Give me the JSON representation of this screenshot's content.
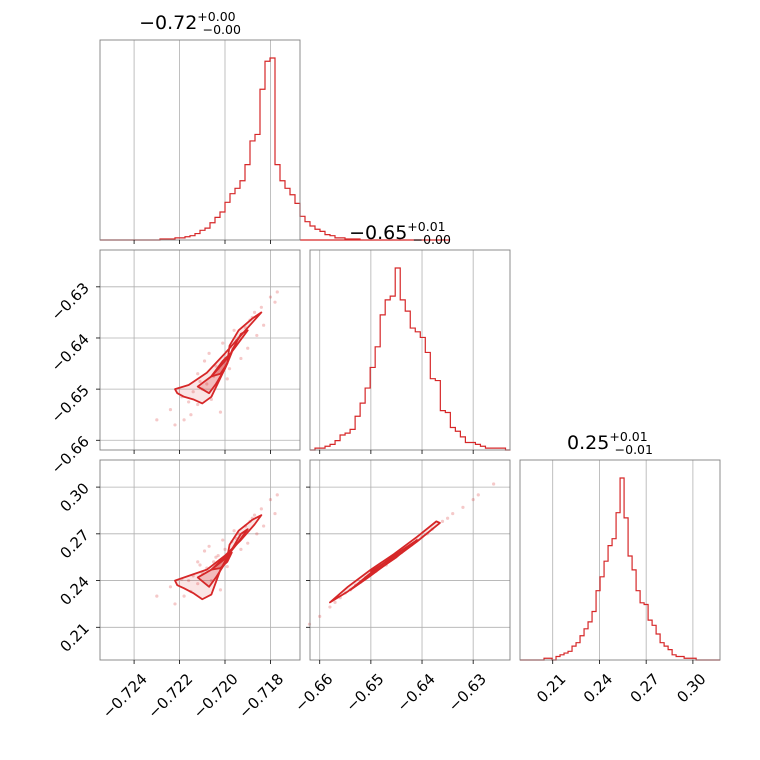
{
  "style": {
    "color": "#d62728",
    "grid": true
  },
  "chart_data": {
    "type": "corner",
    "parameters": [
      {
        "title": {
          "value": "−0.72",
          "plus": "+0.00",
          "minus": "−0.00"
        },
        "range": [
          -0.7255,
          -0.7167
        ],
        "ticks": [
          -0.724,
          -0.722,
          -0.72,
          -0.718
        ],
        "tick_labels": [
          "−0.724",
          "−0.722",
          "−0.720",
          "−0.718"
        ],
        "histogram": {
          "bin_start": -0.7255,
          "bin_width": 0.00022,
          "counts": [
            0,
            0,
            0,
            0,
            0,
            0,
            0,
            0,
            0,
            0,
            0,
            0,
            1,
            1,
            1,
            2,
            2,
            3,
            4,
            6,
            9,
            11,
            16,
            21,
            26,
            35,
            43,
            48,
            55,
            70,
            92,
            98,
            140,
            166,
            169,
            70,
            55,
            48,
            42,
            34,
            22,
            17,
            13,
            10,
            8,
            5,
            4,
            2,
            2,
            1,
            1,
            1,
            0,
            0,
            0,
            0,
            0,
            0,
            0,
            0,
            0,
            0,
            0,
            0,
            0,
            0,
            0,
            0,
            0,
            0
          ]
        }
      },
      {
        "title": {
          "value": "−0.65",
          "plus": "+0.01",
          "minus": "−0.00"
        },
        "range": [
          -0.6619,
          -0.6228
        ],
        "ticks": [
          -0.66,
          -0.65,
          -0.64,
          -0.63
        ],
        "tick_labels": [
          "−0.66",
          "−0.65",
          "−0.64",
          "−0.63"
        ],
        "histogram": {
          "bin_start": -0.6619,
          "bin_width": 0.00098,
          "counts": [
            0,
            1,
            1,
            2,
            3,
            5,
            8,
            9,
            11,
            18,
            25,
            33,
            44,
            55,
            72,
            80,
            82,
            97,
            80,
            74,
            65,
            63,
            60,
            52,
            38,
            37,
            21,
            20,
            12,
            10,
            7,
            4,
            4,
            3,
            2,
            1,
            1,
            1,
            1,
            0
          ]
        }
      },
      {
        "title": {
          "value": "0.25",
          "plus": "+0.01",
          "minus": "−0.01"
        },
        "range": [
          0.189,
          0.3174
        ],
        "ticks": [
          0.21,
          0.24,
          0.27,
          0.3
        ],
        "tick_labels": [
          "0.21",
          "0.24",
          "0.27",
          "0.30"
        ],
        "histogram": {
          "bin_start": 0.189,
          "bin_width": 0.00257,
          "counts": [
            0,
            0,
            0,
            0,
            0,
            0,
            1,
            1,
            0,
            2,
            3,
            4,
            5,
            8,
            10,
            14,
            18,
            22,
            28,
            40,
            48,
            57,
            66,
            70,
            85,
            105,
            82,
            60,
            52,
            40,
            33,
            32,
            23,
            20,
            15,
            10,
            8,
            6,
            3,
            2,
            2,
            1,
            1,
            1,
            0,
            0,
            0,
            0,
            0,
            0
          ]
        }
      }
    ],
    "scatter_2d": [
      {
        "x_param": 0,
        "y_param": 1,
        "points": [
          [
            -0.721,
            -0.65
          ],
          [
            -0.7208,
            -0.649
          ],
          [
            -0.7205,
            -0.6475
          ],
          [
            -0.7203,
            -0.646
          ],
          [
            -0.72,
            -0.644
          ],
          [
            -0.7197,
            -0.642
          ],
          [
            -0.7194,
            -0.64
          ],
          [
            -0.7191,
            -0.638
          ],
          [
            -0.7188,
            -0.636
          ],
          [
            -0.7184,
            -0.634
          ],
          [
            -0.718,
            -0.632
          ],
          [
            -0.7177,
            -0.631
          ],
          [
            -0.7212,
            -0.653
          ],
          [
            -0.7215,
            -0.655
          ],
          [
            -0.7218,
            -0.656
          ],
          [
            -0.7222,
            -0.657
          ],
          [
            -0.7212,
            -0.647
          ],
          [
            -0.7206,
            -0.652
          ],
          [
            -0.7198,
            -0.646
          ],
          [
            -0.7201,
            -0.641
          ],
          [
            -0.719,
            -0.642
          ],
          [
            -0.7209,
            -0.6445
          ],
          [
            -0.7196,
            -0.6385
          ],
          [
            -0.7186,
            -0.6395
          ],
          [
            -0.7214,
            -0.6505
          ],
          [
            -0.7219,
            -0.6515
          ],
          [
            -0.7202,
            -0.6545
          ],
          [
            -0.7207,
            -0.643
          ],
          [
            -0.7193,
            -0.644
          ],
          [
            -0.7183,
            -0.6375
          ],
          [
            -0.7178,
            -0.633
          ],
          [
            -0.7224,
            -0.654
          ],
          [
            -0.723,
            -0.656
          ],
          [
            -0.7199,
            -0.648
          ],
          [
            -0.7211,
            -0.6485
          ],
          [
            -0.7204,
            -0.6455
          ],
          [
            -0.7195,
            -0.6405
          ],
          [
            -0.7189,
            -0.6365
          ],
          [
            -0.7216,
            -0.6525
          ],
          [
            -0.7187,
            -0.635
          ]
        ],
        "contours": [
          [
            [
              -0.7216,
              -0.6492
            ],
            [
              -0.7208,
              -0.6468
            ],
            [
              -0.72,
              -0.643
            ],
            [
              -0.7193,
              -0.6395
            ],
            [
              -0.7187,
              -0.6365
            ],
            [
              -0.7184,
              -0.635
            ],
            [
              -0.7188,
              -0.6362
            ],
            [
              -0.7194,
              -0.6385
            ],
            [
              -0.7198,
              -0.6415
            ],
            [
              -0.7199,
              -0.645
            ],
            [
              -0.7202,
              -0.6478
            ],
            [
              -0.7206,
              -0.6515
            ],
            [
              -0.721,
              -0.6528
            ],
            [
              -0.7214,
              -0.652
            ],
            [
              -0.7218,
              -0.6515
            ],
            [
              -0.7221,
              -0.6508
            ],
            [
              -0.7222,
              -0.65
            ],
            [
              -0.7216,
              -0.6492
            ]
          ],
          [
            [
              -0.7212,
              -0.6495
            ],
            [
              -0.7206,
              -0.6475
            ],
            [
              -0.72,
              -0.6445
            ],
            [
              -0.7195,
              -0.6415
            ],
            [
              -0.719,
              -0.6385
            ],
            [
              -0.7193,
              -0.6392
            ],
            [
              -0.7197,
              -0.6425
            ],
            [
              -0.72,
              -0.646
            ],
            [
              -0.7204,
              -0.649
            ],
            [
              -0.7207,
              -0.6508
            ],
            [
              -0.7212,
              -0.6495
            ]
          ],
          [
            [
              -0.7206,
              -0.6475
            ],
            [
              -0.7201,
              -0.6445
            ],
            [
              -0.7197,
              -0.6428
            ],
            [
              -0.7199,
              -0.645
            ],
            [
              -0.7202,
              -0.647
            ],
            [
              -0.7206,
              -0.6475
            ]
          ]
        ]
      },
      {
        "x_param": 0,
        "y_param": 2,
        "points": [
          [
            -0.721,
            0.245
          ],
          [
            -0.7208,
            0.248
          ],
          [
            -0.7205,
            0.252
          ],
          [
            -0.7203,
            0.256
          ],
          [
            -0.72,
            0.26
          ],
          [
            -0.7197,
            0.265
          ],
          [
            -0.7194,
            0.27
          ],
          [
            -0.7191,
            0.275
          ],
          [
            -0.7188,
            0.28
          ],
          [
            -0.7184,
            0.286
          ],
          [
            -0.718,
            0.292
          ],
          [
            -0.7177,
            0.295
          ],
          [
            -0.7212,
            0.238
          ],
          [
            -0.7215,
            0.233
          ],
          [
            -0.7218,
            0.23
          ],
          [
            -0.7222,
            0.225
          ],
          [
            -0.7212,
            0.252
          ],
          [
            -0.7206,
            0.24
          ],
          [
            -0.7198,
            0.256
          ],
          [
            -0.7201,
            0.266
          ],
          [
            -0.719,
            0.264
          ],
          [
            -0.7209,
            0.259
          ],
          [
            -0.7196,
            0.272
          ],
          [
            -0.7186,
            0.27
          ],
          [
            -0.7214,
            0.243
          ],
          [
            -0.7219,
            0.241
          ],
          [
            -0.7202,
            0.234
          ],
          [
            -0.7207,
            0.262
          ],
          [
            -0.7193,
            0.26
          ],
          [
            -0.7183,
            0.275
          ],
          [
            -0.7178,
            0.283
          ],
          [
            -0.7224,
            0.236
          ],
          [
            -0.723,
            0.23
          ],
          [
            -0.7199,
            0.249
          ],
          [
            -0.7211,
            0.25
          ],
          [
            -0.7204,
            0.255
          ],
          [
            -0.7195,
            0.267
          ],
          [
            -0.7189,
            0.278
          ],
          [
            -0.7216,
            0.24
          ],
          [
            -0.7187,
            0.282
          ]
        ],
        "contours": [
          [
            [
              -0.7216,
              0.243
            ],
            [
              -0.7208,
              0.247
            ],
            [
              -0.72,
              0.256
            ],
            [
              -0.7193,
              0.266
            ],
            [
              -0.7187,
              0.276
            ],
            [
              -0.7184,
              0.282
            ],
            [
              -0.7188,
              0.279
            ],
            [
              -0.7194,
              0.272
            ],
            [
              -0.7198,
              0.263
            ],
            [
              -0.7199,
              0.255
            ],
            [
              -0.7202,
              0.247
            ],
            [
              -0.7206,
              0.231
            ],
            [
              -0.721,
              0.228
            ],
            [
              -0.7214,
              0.232
            ],
            [
              -0.7218,
              0.235
            ],
            [
              -0.7221,
              0.237
            ],
            [
              -0.7222,
              0.24
            ],
            [
              -0.7216,
              0.243
            ]
          ],
          [
            [
              -0.7212,
              0.242
            ],
            [
              -0.7206,
              0.247
            ],
            [
              -0.72,
              0.254
            ],
            [
              -0.7195,
              0.263
            ],
            [
              -0.719,
              0.273
            ],
            [
              -0.7193,
              0.27
            ],
            [
              -0.7197,
              0.26
            ],
            [
              -0.72,
              0.251
            ],
            [
              -0.7204,
              0.242
            ],
            [
              -0.7207,
              0.236
            ],
            [
              -0.7212,
              0.242
            ]
          ],
          [
            [
              -0.7206,
              0.247
            ],
            [
              -0.7201,
              0.254
            ],
            [
              -0.7197,
              0.258
            ],
            [
              -0.7199,
              0.252
            ],
            [
              -0.7202,
              0.248
            ],
            [
              -0.7206,
              0.247
            ]
          ]
        ]
      },
      {
        "x_param": 1,
        "y_param": 2,
        "points": [
          [
            -0.656,
            0.229
          ],
          [
            -0.654,
            0.234
          ],
          [
            -0.652,
            0.239
          ],
          [
            -0.65,
            0.244
          ],
          [
            -0.648,
            0.249
          ],
          [
            -0.646,
            0.254
          ],
          [
            -0.644,
            0.258
          ],
          [
            -0.642,
            0.263
          ],
          [
            -0.64,
            0.268
          ],
          [
            -0.638,
            0.273
          ],
          [
            -0.635,
            0.28
          ],
          [
            -0.632,
            0.287
          ],
          [
            -0.629,
            0.295
          ],
          [
            -0.66,
            0.217
          ],
          [
            -0.658,
            0.223
          ],
          [
            -0.662,
            0.212
          ],
          [
            -0.626,
            0.302
          ],
          [
            -0.651,
            0.242
          ],
          [
            -0.647,
            0.25
          ],
          [
            -0.643,
            0.261
          ],
          [
            -0.639,
            0.27
          ],
          [
            -0.636,
            0.278
          ],
          [
            -0.655,
            0.232
          ],
          [
            -0.649,
            0.246
          ],
          [
            -0.645,
            0.256
          ],
          [
            -0.641,
            0.266
          ],
          [
            -0.634,
            0.283
          ],
          [
            -0.657,
            0.226
          ],
          [
            -0.653,
            0.237
          ],
          [
            -0.63,
            0.292
          ]
        ],
        "contours": [
          [
            [
              -0.658,
              0.226
            ],
            [
              -0.6545,
              0.236
            ],
            [
              -0.65,
              0.247
            ],
            [
              -0.6455,
              0.257
            ],
            [
              -0.641,
              0.268
            ],
            [
              -0.6372,
              0.278
            ],
            [
              -0.6365,
              0.277
            ],
            [
              -0.641,
              0.265
            ],
            [
              -0.6455,
              0.254
            ],
            [
              -0.65,
              0.244
            ],
            [
              -0.6545,
              0.233
            ],
            [
              -0.658,
              0.226
            ]
          ],
          [
            [
              -0.654,
              0.234
            ],
            [
              -0.65,
              0.245
            ],
            [
              -0.6455,
              0.256
            ],
            [
              -0.641,
              0.266
            ],
            [
              -0.6415,
              0.264
            ],
            [
              -0.646,
              0.253
            ],
            [
              -0.6505,
              0.242
            ],
            [
              -0.654,
              0.234
            ]
          ],
          [
            [
              -0.65,
              0.246
            ],
            [
              -0.646,
              0.254
            ],
            [
              -0.644,
              0.258
            ],
            [
              -0.645,
              0.255
            ],
            [
              -0.649,
              0.246
            ],
            [
              -0.65,
              0.246
            ]
          ]
        ]
      }
    ]
  }
}
